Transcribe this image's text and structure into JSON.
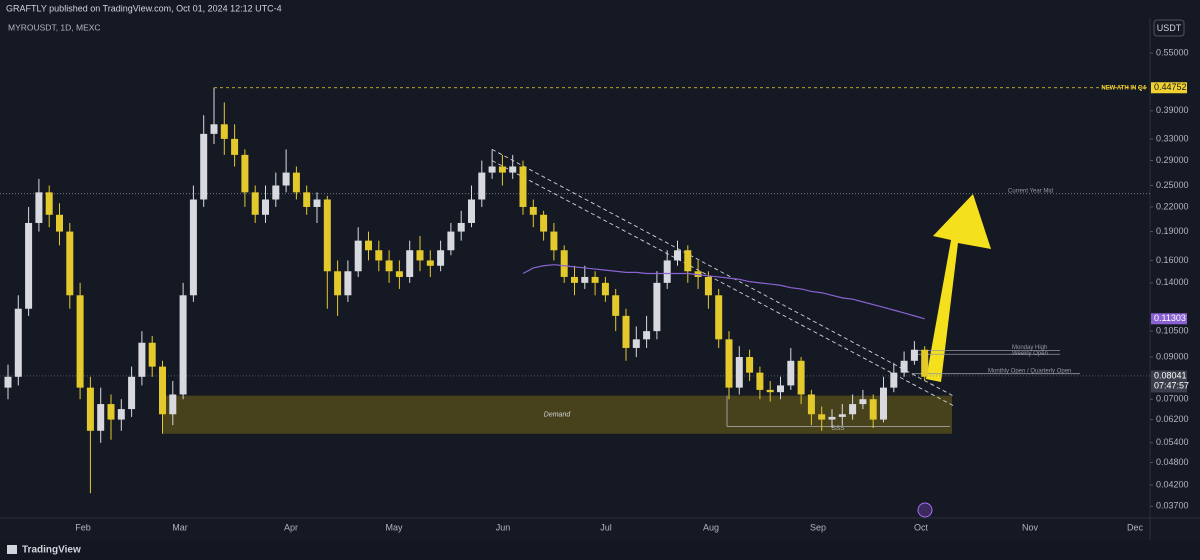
{
  "chart_data": {
    "type": "candlestick",
    "publisher": "GRAFTLY published on TradingView.com, Oct 01, 2024 12:12 UTC-4",
    "title": "MYROUSDT, 1D, MEXC",
    "currency": "USDT",
    "brand": "TradingView",
    "log_scale": true,
    "grid": false,
    "up_color": "#d8d9de",
    "down_color": "#e3c92c",
    "months": [
      "Feb",
      "Mar",
      "Apr",
      "May",
      "Jun",
      "Jul",
      "Aug",
      "Sep",
      "Oct",
      "Nov",
      "Dec"
    ],
    "open": [
      0.075,
      0.08,
      0.12,
      0.2,
      0.24,
      0.21,
      0.19,
      0.13,
      0.075,
      0.058,
      0.068,
      0.062,
      0.066,
      0.08,
      0.098,
      0.085,
      0.064,
      0.072,
      0.13,
      0.23,
      0.34,
      0.36,
      0.33,
      0.3,
      0.24,
      0.21,
      0.23,
      0.25,
      0.27,
      0.24,
      0.22,
      0.23,
      0.15,
      0.13,
      0.15,
      0.18,
      0.17,
      0.16,
      0.15,
      0.145,
      0.17,
      0.16,
      0.155,
      0.17,
      0.19,
      0.2,
      0.23,
      0.27,
      0.28,
      0.27,
      0.28,
      0.22,
      0.21,
      0.19,
      0.17,
      0.145,
      0.14,
      0.145,
      0.14,
      0.13,
      0.115,
      0.095,
      0.1,
      0.105,
      0.14,
      0.16,
      0.17,
      0.15,
      0.145,
      0.13,
      0.1,
      0.075,
      0.09,
      0.082,
      0.074,
      0.073,
      0.076,
      0.088,
      0.072,
      0.064,
      0.062,
      0.063,
      0.064,
      0.068,
      0.07,
      0.062,
      0.075,
      0.082,
      0.088,
      0.094
    ],
    "high": [
      0.086,
      0.13,
      0.22,
      0.26,
      0.25,
      0.225,
      0.2,
      0.14,
      0.08,
      0.075,
      0.072,
      0.07,
      0.085,
      0.105,
      0.102,
      0.088,
      0.078,
      0.14,
      0.25,
      0.38,
      0.4475,
      0.41,
      0.36,
      0.31,
      0.25,
      0.25,
      0.27,
      0.31,
      0.28,
      0.25,
      0.24,
      0.235,
      0.16,
      0.16,
      0.195,
      0.19,
      0.18,
      0.17,
      0.16,
      0.18,
      0.185,
      0.17,
      0.18,
      0.2,
      0.215,
      0.25,
      0.29,
      0.31,
      0.3,
      0.3,
      0.29,
      0.23,
      0.215,
      0.2,
      0.175,
      0.155,
      0.155,
      0.15,
      0.145,
      0.135,
      0.12,
      0.108,
      0.115,
      0.15,
      0.17,
      0.18,
      0.175,
      0.16,
      0.15,
      0.135,
      0.105,
      0.096,
      0.094,
      0.085,
      0.078,
      0.08,
      0.095,
      0.09,
      0.074,
      0.067,
      0.066,
      0.068,
      0.072,
      0.074,
      0.072,
      0.08,
      0.087,
      0.093,
      0.099,
      0.096
    ],
    "low": [
      0.07,
      0.076,
      0.115,
      0.19,
      0.195,
      0.175,
      0.12,
      0.07,
      0.04,
      0.054,
      0.055,
      0.058,
      0.063,
      0.076,
      0.08,
      0.057,
      0.06,
      0.07,
      0.125,
      0.22,
      0.32,
      0.3,
      0.28,
      0.22,
      0.2,
      0.2,
      0.22,
      0.24,
      0.23,
      0.21,
      0.2,
      0.12,
      0.115,
      0.125,
      0.145,
      0.16,
      0.15,
      0.14,
      0.135,
      0.14,
      0.15,
      0.145,
      0.15,
      0.165,
      0.18,
      0.195,
      0.22,
      0.26,
      0.25,
      0.26,
      0.21,
      0.195,
      0.18,
      0.16,
      0.14,
      0.13,
      0.135,
      0.13,
      0.125,
      0.105,
      0.088,
      0.09,
      0.095,
      0.1,
      0.135,
      0.155,
      0.14,
      0.135,
      0.12,
      0.095,
      0.07,
      0.072,
      0.078,
      0.07,
      0.069,
      0.07,
      0.074,
      0.068,
      0.06,
      0.058,
      0.059,
      0.06,
      0.062,
      0.066,
      0.059,
      0.061,
      0.073,
      0.08,
      0.086,
      0.078
    ],
    "close": [
      0.08,
      0.12,
      0.2,
      0.24,
      0.21,
      0.19,
      0.13,
      0.075,
      0.058,
      0.068,
      0.062,
      0.066,
      0.08,
      0.098,
      0.085,
      0.064,
      0.072,
      0.13,
      0.23,
      0.34,
      0.36,
      0.33,
      0.3,
      0.24,
      0.21,
      0.23,
      0.25,
      0.27,
      0.24,
      0.22,
      0.23,
      0.15,
      0.13,
      0.15,
      0.18,
      0.17,
      0.16,
      0.15,
      0.145,
      0.17,
      0.16,
      0.155,
      0.17,
      0.19,
      0.2,
      0.23,
      0.27,
      0.28,
      0.27,
      0.28,
      0.22,
      0.21,
      0.19,
      0.17,
      0.145,
      0.14,
      0.145,
      0.14,
      0.13,
      0.115,
      0.095,
      0.1,
      0.105,
      0.14,
      0.16,
      0.17,
      0.15,
      0.145,
      0.13,
      0.1,
      0.075,
      0.09,
      0.082,
      0.074,
      0.073,
      0.076,
      0.088,
      0.072,
      0.064,
      0.062,
      0.063,
      0.064,
      0.068,
      0.07,
      0.062,
      0.075,
      0.082,
      0.088,
      0.094,
      0.08
    ],
    "moving_average": {
      "color": "#8a63d2",
      "values": [
        null,
        null,
        null,
        null,
        null,
        null,
        null,
        null,
        null,
        null,
        null,
        null,
        null,
        null,
        null,
        null,
        null,
        null,
        null,
        null,
        null,
        null,
        null,
        null,
        null,
        null,
        null,
        null,
        null,
        null,
        null,
        null,
        null,
        null,
        null,
        null,
        null,
        null,
        null,
        null,
        null,
        null,
        null,
        null,
        null,
        null,
        null,
        null,
        null,
        null,
        0.148,
        0.153,
        0.155,
        0.156,
        0.155,
        0.154,
        0.153,
        0.152,
        0.151,
        0.15,
        0.149,
        0.149,
        0.148,
        0.148,
        0.148,
        0.148,
        0.148,
        0.147,
        0.146,
        0.145,
        0.144,
        0.143,
        0.141,
        0.14,
        0.139,
        0.138,
        0.136,
        0.135,
        0.133,
        0.132,
        0.13,
        0.128,
        0.127,
        0.125,
        0.123,
        0.121,
        0.119,
        0.117,
        0.115,
        0.113
      ]
    },
    "ylim": [
      0.0345,
      0.67
    ],
    "yticks": [
      {
        "value": 0.55,
        "label": "0.55000"
      },
      {
        "value": 0.39,
        "label": "0.39000"
      },
      {
        "value": 0.33,
        "label": "0.33000"
      },
      {
        "value": 0.29,
        "label": "0.29000"
      },
      {
        "value": 0.25,
        "label": "0.25000"
      },
      {
        "value": 0.22,
        "label": "0.22000"
      },
      {
        "value": 0.19,
        "label": "0.19000"
      },
      {
        "value": 0.16,
        "label": "0.16000"
      },
      {
        "value": 0.14,
        "label": "0.14000"
      },
      {
        "value": 0.105,
        "label": "0.10500"
      },
      {
        "value": 0.09,
        "label": "0.09000"
      },
      {
        "value": 0.07,
        "label": "0.07000"
      },
      {
        "value": 0.062,
        "label": "0.06200"
      },
      {
        "value": 0.054,
        "label": "0.05400"
      },
      {
        "value": 0.048,
        "label": "0.04800"
      },
      {
        "value": 0.042,
        "label": "0.04200"
      },
      {
        "value": 0.037,
        "label": "0.03700"
      }
    ],
    "price_labels": [
      {
        "value": 0.44752,
        "label": "0.44752",
        "color": "#f2d22e",
        "text_color": "#131722"
      },
      {
        "value": 0.11303,
        "label": "0.11303",
        "color": "#8a63d2",
        "text_color": "#ffffff"
      },
      {
        "value": 0.08041,
        "label": "0.08041",
        "color": "#3a3e4a",
        "text_color": "#ffffff"
      }
    ],
    "countdown": "07:47:57",
    "levels": [
      {
        "name": "NEW ATH IN Q4",
        "value": 0.44752,
        "color": "#f2d22e"
      },
      {
        "name": "Current Year Mid",
        "value": 0.238,
        "color": "#9598a1"
      },
      {
        "name": "Monday High",
        "value": 0.0935,
        "color": "#9598a1"
      },
      {
        "name": "Weekly Open",
        "value": 0.0915,
        "color": "#9598a1"
      },
      {
        "name": "Monthly Open / Quarterly Open",
        "value": 0.0815,
        "color": "#9598a1"
      }
    ],
    "zones": [
      {
        "name": "Demand",
        "low": 0.057,
        "high": 0.0715,
        "color": "#4d471c"
      }
    ],
    "sss": {
      "name": "SSS",
      "value": 0.0595
    },
    "trendlines": [
      {
        "start": 0.31,
        "end": 0.071
      },
      {
        "start": 0.29,
        "end": 0.067
      }
    ]
  }
}
